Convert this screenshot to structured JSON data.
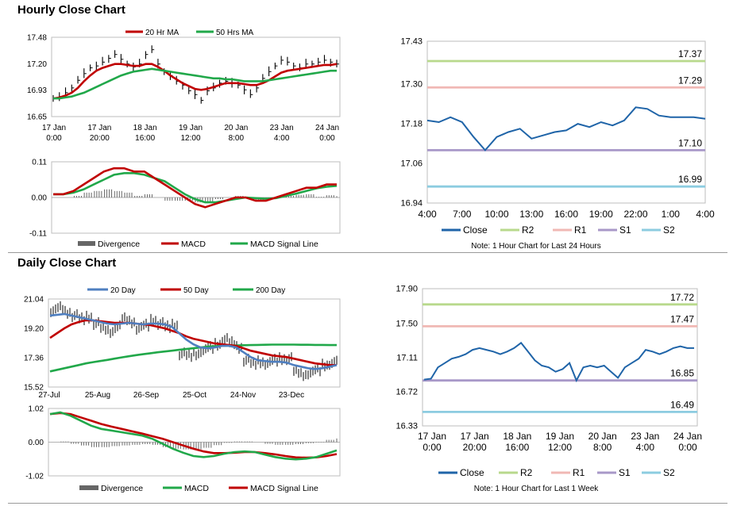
{
  "sections": {
    "hourly_title": "Hourly Close Chart",
    "daily_title": "Daily Close Chart"
  },
  "colors": {
    "close": "#1f64a8",
    "ma20": "#c00000",
    "ma50": "#21a84a",
    "r2": "#b8d98c",
    "r1": "#f0b8b4",
    "s1": "#a898c8",
    "s2": "#8ccce0",
    "divergence": "#666666",
    "daily_ma20": "#4f7fc0",
    "daily_ma200": "#21a84a"
  },
  "chart_data": [
    {
      "id": "hourly-price",
      "type": "line",
      "legend": [
        "20 Hr MA",
        "50 Hrs MA"
      ],
      "legend_position": "top",
      "yticks": [
        "17.48",
        "17.20",
        "16.93",
        "16.65"
      ],
      "ylim": [
        16.65,
        17.48
      ],
      "xticks": [
        [
          "17 Jan",
          "0:00"
        ],
        [
          "17 Jan",
          "20:00"
        ],
        [
          "18 Jan",
          "16:00"
        ],
        [
          "19 Jan",
          "12:00"
        ],
        [
          "20 Jan",
          "8:00"
        ],
        [
          "23 Jan",
          "4:00"
        ],
        [
          "24 Jan",
          "0:00"
        ]
      ],
      "series": [
        {
          "name": "Price",
          "values": [
            16.84,
            16.86,
            16.9,
            16.95,
            17.03,
            17.1,
            17.16,
            17.18,
            17.22,
            17.26,
            17.3,
            17.25,
            17.2,
            17.17,
            17.2,
            17.3,
            17.35,
            17.2,
            17.12,
            17.08,
            17.02,
            16.98,
            16.92,
            16.88,
            16.82,
            16.92,
            16.95,
            17.0,
            17.02,
            17.0,
            16.98,
            16.93,
            16.88,
            16.95,
            17.05,
            17.12,
            17.18,
            17.24,
            17.22,
            17.18,
            17.16,
            17.2,
            17.2,
            17.22,
            17.24,
            17.22,
            17.2
          ]
        },
        {
          "name": "20 Hr MA",
          "values": [
            16.84,
            16.85,
            16.87,
            16.9,
            16.95,
            17.02,
            17.08,
            17.13,
            17.16,
            17.18,
            17.2,
            17.2,
            17.19,
            17.18,
            17.18,
            17.2,
            17.2,
            17.17,
            17.13,
            17.08,
            17.04,
            17.0,
            16.97,
            16.94,
            16.93,
            16.94,
            16.96,
            16.98,
            17.0,
            17.0,
            17.0,
            16.99,
            16.98,
            16.98,
            17.0,
            17.03,
            17.07,
            17.11,
            17.13,
            17.14,
            17.15,
            17.16,
            17.17,
            17.18,
            17.19,
            17.19,
            17.2
          ]
        },
        {
          "name": "50 Hrs MA",
          "values": [
            16.84,
            16.84,
            16.85,
            16.86,
            16.88,
            16.9,
            16.93,
            16.96,
            16.99,
            17.02,
            17.05,
            17.08,
            17.1,
            17.12,
            17.13,
            17.14,
            17.15,
            17.14,
            17.13,
            17.12,
            17.11,
            17.1,
            17.09,
            17.08,
            17.07,
            17.06,
            17.05,
            17.05,
            17.04,
            17.04,
            17.03,
            17.02,
            17.02,
            17.02,
            17.02,
            17.03,
            17.04,
            17.05,
            17.06,
            17.07,
            17.08,
            17.09,
            17.1,
            17.11,
            17.12,
            17.13,
            17.13
          ]
        }
      ]
    },
    {
      "id": "hourly-macd",
      "type": "line",
      "legend": [
        "Divergence",
        "MACD",
        "MACD Signal Line"
      ],
      "legend_position": "bottom",
      "yticks": [
        "0.11",
        "0.00",
        "-0.11"
      ],
      "ylim": [
        -0.11,
        0.11
      ],
      "series": [
        {
          "name": "MACD",
          "values": [
            0.01,
            0.01,
            0.02,
            0.04,
            0.06,
            0.08,
            0.09,
            0.09,
            0.08,
            0.08,
            0.06,
            0.04,
            0.02,
            0.0,
            -0.02,
            -0.03,
            -0.02,
            -0.01,
            0.0,
            0.0,
            -0.01,
            -0.01,
            0.0,
            0.01,
            0.02,
            0.03,
            0.03,
            0.04,
            0.04
          ]
        },
        {
          "name": "MACD Signal Line",
          "values": [
            0.01,
            0.01,
            0.015,
            0.025,
            0.04,
            0.055,
            0.07,
            0.075,
            0.075,
            0.07,
            0.06,
            0.05,
            0.03,
            0.01,
            -0.005,
            -0.015,
            -0.015,
            -0.01,
            -0.005,
            0.0,
            -0.002,
            -0.004,
            -0.002,
            0.005,
            0.012,
            0.02,
            0.028,
            0.033,
            0.036
          ]
        },
        {
          "name": "Divergence",
          "values": [
            0.0,
            0.0,
            0.005,
            0.015,
            0.02,
            0.025,
            0.02,
            0.015,
            0.005,
            0.01,
            0.0,
            -0.01,
            -0.01,
            -0.01,
            -0.015,
            -0.015,
            -0.005,
            0.0,
            0.005,
            0.0,
            -0.008,
            -0.006,
            0.002,
            0.005,
            0.008,
            0.01,
            0.002,
            0.007,
            0.004
          ]
        }
      ]
    },
    {
      "id": "hourly-close",
      "type": "line",
      "legend": [
        "Close",
        "R2",
        "R1",
        "S1",
        "S2"
      ],
      "legend_position": "bottom",
      "note": "Note: 1 Hour Chart for Last 24 Hours",
      "yticks": [
        "17.43",
        "17.30",
        "17.18",
        "17.06",
        "16.94"
      ],
      "ylim": [
        16.94,
        17.43
      ],
      "xticks": [
        "4:00",
        "7:00",
        "10:00",
        "13:00",
        "16:00",
        "19:00",
        "22:00",
        "1:00",
        "4:00"
      ],
      "xlim": [
        0,
        24
      ],
      "levels": [
        {
          "name": "R2",
          "value": 17.37,
          "label": "17.37"
        },
        {
          "name": "R1",
          "value": 17.29,
          "label": "17.29"
        },
        {
          "name": "S1",
          "value": 17.1,
          "label": "17.10"
        },
        {
          "name": "S2",
          "value": 16.99,
          "label": "16.99"
        }
      ],
      "series": [
        {
          "name": "Close",
          "x": [
            0,
            1,
            2,
            3,
            4,
            5,
            6,
            7,
            8,
            9,
            10,
            11,
            12,
            13,
            14,
            15,
            16,
            17,
            18,
            19,
            20,
            21,
            22,
            23,
            24
          ],
          "values": [
            17.19,
            17.185,
            17.2,
            17.185,
            17.14,
            17.1,
            17.14,
            17.155,
            17.165,
            17.135,
            17.145,
            17.155,
            17.16,
            17.18,
            17.17,
            17.185,
            17.175,
            17.19,
            17.23,
            17.225,
            17.205,
            17.2,
            17.2,
            17.2,
            17.195
          ]
        }
      ]
    },
    {
      "id": "daily-price",
      "type": "line",
      "legend": [
        "20 Day",
        "50 Day",
        "200 Day"
      ],
      "legend_position": "top",
      "yticks": [
        "21.04",
        "19.20",
        "17.36",
        "15.52"
      ],
      "ylim": [
        15.52,
        21.04
      ],
      "xticks": [
        "27-Jul",
        "25-Aug",
        "26-Sep",
        "25-Oct",
        "24-Nov",
        "23-Dec"
      ],
      "series": [
        {
          "name": "Price",
          "values": [
            20.3,
            20.5,
            20.2,
            20.0,
            19.8,
            19.9,
            19.5,
            19.2,
            19.0,
            19.3,
            19.8,
            19.6,
            19.2,
            19.4,
            19.7,
            19.5,
            19.3,
            19.4,
            17.6,
            17.5,
            17.6,
            17.8,
            18.0,
            18.2,
            18.5,
            18.3,
            18.0,
            17.2,
            17.0,
            17.1,
            17.0,
            17.2,
            17.3,
            17.3,
            16.5,
            16.3,
            16.4,
            16.6,
            16.9,
            17.0,
            17.2
          ]
        },
        {
          "name": "20 Day",
          "values": [
            20.0,
            20.05,
            20.1,
            20.0,
            19.9,
            19.8,
            19.7,
            19.6,
            19.5,
            19.45,
            19.5,
            19.55,
            19.5,
            19.45,
            19.5,
            19.5,
            19.45,
            19.3,
            18.9,
            18.5,
            18.2,
            18.0,
            17.95,
            18.0,
            18.1,
            18.1,
            18.0,
            17.7,
            17.4,
            17.2,
            17.15,
            17.1,
            17.1,
            17.05,
            16.9,
            16.8,
            16.7,
            16.65,
            16.7,
            16.8,
            16.9
          ]
        },
        {
          "name": "50 Day",
          "values": [
            18.6,
            18.9,
            19.2,
            19.45,
            19.6,
            19.7,
            19.7,
            19.65,
            19.6,
            19.55,
            19.55,
            19.55,
            19.5,
            19.45,
            19.4,
            19.3,
            19.2,
            19.05,
            18.9,
            18.7,
            18.55,
            18.45,
            18.35,
            18.25,
            18.2,
            18.15,
            18.1,
            17.95,
            17.8,
            17.7,
            17.6,
            17.5,
            17.45,
            17.4,
            17.3,
            17.2,
            17.1,
            17.0,
            16.95,
            16.9,
            16.9
          ]
        },
        {
          "name": "200 Day",
          "values": [
            16.5,
            16.6,
            16.7,
            16.8,
            16.9,
            17.0,
            17.08,
            17.15,
            17.22,
            17.3,
            17.38,
            17.45,
            17.52,
            17.58,
            17.64,
            17.7,
            17.75,
            17.8,
            17.85,
            17.9,
            17.95,
            18.0,
            18.05,
            18.08,
            18.1,
            18.12,
            18.13,
            18.14,
            18.15,
            18.16,
            18.17,
            18.18,
            18.18,
            18.18,
            18.18,
            18.17,
            18.17,
            18.16,
            18.16,
            18.15,
            18.15
          ]
        }
      ]
    },
    {
      "id": "daily-macd",
      "type": "line",
      "legend": [
        "Divergence",
        "MACD",
        "MACD Signal Line"
      ],
      "legend_position": "bottom",
      "yticks": [
        "1.02",
        "0.00",
        "-1.02"
      ],
      "ylim": [
        -1.02,
        1.02
      ],
      "series": [
        {
          "name": "MACD",
          "values": [
            0.85,
            0.9,
            0.8,
            0.65,
            0.5,
            0.4,
            0.35,
            0.3,
            0.25,
            0.2,
            0.1,
            -0.05,
            -0.2,
            -0.32,
            -0.42,
            -0.45,
            -0.42,
            -0.35,
            -0.3,
            -0.28,
            -0.3,
            -0.38,
            -0.45,
            -0.5,
            -0.52,
            -0.5,
            -0.45,
            -0.35,
            -0.25
          ]
        },
        {
          "name": "MACD Signal Line",
          "values": [
            0.85,
            0.88,
            0.85,
            0.75,
            0.65,
            0.55,
            0.47,
            0.4,
            0.33,
            0.26,
            0.18,
            0.1,
            0.0,
            -0.1,
            -0.2,
            -0.28,
            -0.33,
            -0.33,
            -0.32,
            -0.3,
            -0.3,
            -0.33,
            -0.37,
            -0.42,
            -0.46,
            -0.47,
            -0.46,
            -0.42,
            -0.36
          ]
        },
        {
          "name": "Divergence",
          "values": [
            0.0,
            0.02,
            -0.05,
            -0.1,
            -0.15,
            -0.15,
            -0.12,
            -0.1,
            -0.08,
            -0.06,
            -0.08,
            -0.15,
            -0.2,
            -0.22,
            -0.22,
            -0.17,
            -0.09,
            -0.02,
            0.02,
            0.02,
            0.0,
            -0.05,
            -0.08,
            -0.08,
            -0.06,
            -0.03,
            0.01,
            0.07,
            0.11
          ]
        }
      ]
    },
    {
      "id": "daily-close",
      "type": "line",
      "legend": [
        "Close",
        "R2",
        "R1",
        "S1",
        "S2"
      ],
      "legend_position": "bottom",
      "note": "Note: 1 Hour Chart for Last 1 Week",
      "yticks": [
        "17.90",
        "17.50",
        "17.11",
        "16.72",
        "16.33"
      ],
      "ylim": [
        16.33,
        17.9
      ],
      "xticks": [
        [
          "17 Jan",
          "0:00"
        ],
        [
          "17 Jan",
          "20:00"
        ],
        [
          "18 Jan",
          "16:00"
        ],
        [
          "19 Jan",
          "12:00"
        ],
        [
          "20 Jan",
          "8:00"
        ],
        [
          "23 Jan",
          "4:00"
        ],
        [
          "24 Jan",
          "0:00"
        ]
      ],
      "levels": [
        {
          "name": "R2",
          "value": 17.72,
          "label": "17.72"
        },
        {
          "name": "R1",
          "value": 17.47,
          "label": "17.47"
        },
        {
          "name": "S1",
          "value": 16.85,
          "label": "16.85"
        },
        {
          "name": "S2",
          "value": 16.49,
          "label": "16.49"
        }
      ],
      "series": [
        {
          "name": "Close",
          "values": [
            16.86,
            16.87,
            17.0,
            17.05,
            17.1,
            17.12,
            17.15,
            17.2,
            17.22,
            17.2,
            17.18,
            17.15,
            17.18,
            17.22,
            17.28,
            17.18,
            17.08,
            17.02,
            17.0,
            16.95,
            16.98,
            17.05,
            16.85,
            17.0,
            17.02,
            17.0,
            17.02,
            16.95,
            16.88,
            17.0,
            17.05,
            17.1,
            17.2,
            17.18,
            17.15,
            17.18,
            17.22,
            17.24,
            17.22,
            17.22
          ]
        }
      ]
    }
  ]
}
